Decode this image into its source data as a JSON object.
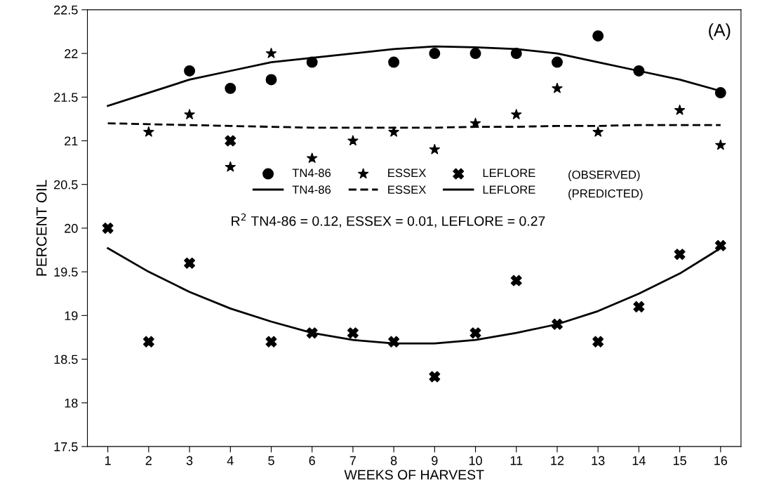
{
  "chart_data": {
    "type": "scatter",
    "xlabel": "WEEKS OF HARVEST",
    "ylabel": "PERCENT OIL",
    "categories": [
      "1",
      "2",
      "3",
      "4",
      "5",
      "6",
      "7",
      "8",
      "9",
      "10",
      "11",
      "12",
      "13",
      "14",
      "15",
      "16"
    ],
    "ylim": [
      17.5,
      22.5
    ],
    "yticks": [
      17.5,
      18,
      18.5,
      19,
      19.5,
      20,
      20.5,
      21,
      21.5,
      22,
      22.5
    ],
    "grid": false,
    "legend": "center",
    "series": [
      {
        "name": "TN4-86",
        "marker": "circle",
        "color": "#000000",
        "values": [
          null,
          null,
          21.8,
          21.6,
          21.7,
          21.9,
          null,
          21.9,
          22.0,
          22.0,
          22.0,
          21.9,
          22.2,
          21.8,
          null,
          21.55
        ]
      },
      {
        "name": "TN4-86",
        "type": "line",
        "marker": "none",
        "line_style": "solid",
        "color": "#000000",
        "values": [
          21.4,
          21.55,
          21.7,
          21.8,
          21.9,
          21.95,
          22.0,
          22.05,
          22.08,
          22.07,
          22.05,
          22.0,
          21.9,
          21.8,
          21.7,
          21.57
        ]
      },
      {
        "name": "ESSEX",
        "marker": "star",
        "color": "#000000",
        "values": [
          null,
          21.1,
          21.3,
          20.7,
          22.0,
          20.8,
          21.0,
          21.1,
          20.9,
          21.2,
          21.3,
          21.6,
          21.1,
          null,
          21.35,
          20.95
        ]
      },
      {
        "name": "ESSEX",
        "type": "line",
        "marker": "none",
        "line_style": "dashed",
        "color": "#000000",
        "values": [
          21.2,
          21.19,
          21.18,
          21.17,
          21.16,
          21.15,
          21.15,
          21.15,
          21.15,
          21.16,
          21.16,
          21.17,
          21.17,
          21.18,
          21.18,
          21.18
        ]
      },
      {
        "name": "LEFLORE",
        "marker": "cross",
        "color": "#000000",
        "values": [
          20.0,
          18.7,
          19.6,
          21.0,
          18.7,
          18.8,
          18.8,
          18.7,
          18.3,
          18.8,
          19.4,
          18.9,
          18.7,
          19.1,
          19.7,
          19.8
        ]
      },
      {
        "name": "LEFLORE",
        "type": "line",
        "marker": "none",
        "line_style": "solid",
        "color": "#000000",
        "values": [
          19.77,
          19.5,
          19.27,
          19.08,
          18.93,
          18.8,
          18.72,
          18.68,
          18.68,
          18.72,
          18.8,
          18.9,
          19.05,
          19.25,
          19.48,
          19.77
        ]
      }
    ],
    "annotations": [
      "(A)",
      "(OBSERVED)",
      "(PREDICTED)",
      "R$^{2}$ TN4-86 = 0.12, ESSEX = 0.01, LEFLORE = 0.27"
    ]
  }
}
